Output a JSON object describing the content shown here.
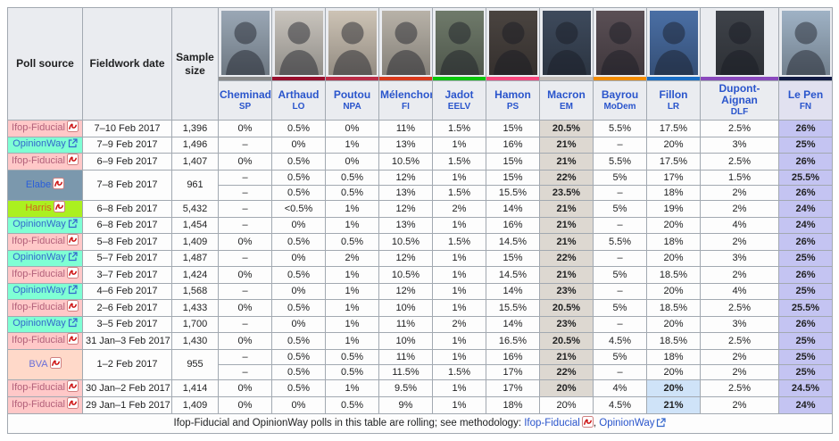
{
  "table": {
    "columns": [
      "Poll source",
      "Fieldwork date",
      "Sample size"
    ],
    "candidates": [
      {
        "name": "Cheminade",
        "party": "SP",
        "color": "#8a8a8a",
        "photo": "#9aa7b5"
      },
      {
        "name": "Arthaud",
        "party": "LO",
        "color": "#99102e",
        "photo": "#c9c4bd"
      },
      {
        "name": "Poutou",
        "party": "NPA",
        "color": "#bb2e48",
        "photo": "#cdc3b5"
      },
      {
        "name": "Mélenchon",
        "party": "FI",
        "color": "#d93a1d",
        "photo": "#b8b2a8"
      },
      {
        "name": "Jadot",
        "party": "EELV",
        "color": "#0cc60c",
        "photo": "#6f7a6a"
      },
      {
        "name": "Hamon",
        "party": "PS",
        "color": "#f8487e",
        "photo": "#4a4440"
      },
      {
        "name": "Macron",
        "party": "EM",
        "color": "#c3bdb8",
        "photo": "#3e4a5c"
      },
      {
        "name": "Bayrou",
        "party": "MoDem",
        "color": "#f28c00",
        "photo": "#5a4f55"
      },
      {
        "name": "Fillon",
        "party": "LR",
        "color": "#1b6fc6",
        "photo": "#4a6fa5"
      },
      {
        "name": "Dupont-Aignan",
        "party": "DLF",
        "color": "#8a49bd",
        "photo": "#3f434a"
      },
      {
        "name": "Le Pen",
        "party": "FN",
        "color": "#131c45",
        "photo": "#9fb2c5"
      }
    ],
    "rows": [
      {
        "source": {
          "label": "Ifop-Fiducial",
          "type": "ifop",
          "icon": "pdf"
        },
        "date": "7–10 Feb 2017",
        "sample": "1,396",
        "cells": [
          "0%",
          "0.5%",
          "0%",
          "11%",
          "1.5%",
          "15%",
          "20.5%",
          "5.5%",
          "17.5%",
          "2.5%",
          "26%"
        ],
        "highlights": {
          "6": "m",
          "10": "l"
        }
      },
      {
        "source": {
          "label": "OpinionWay",
          "type": "opinionway",
          "icon": "ext"
        },
        "date": "7–9 Feb 2017",
        "sample": "1,496",
        "cells": [
          "–",
          "0%",
          "1%",
          "13%",
          "1%",
          "16%",
          "21%",
          "–",
          "20%",
          "3%",
          "25%"
        ],
        "highlights": {
          "6": "m",
          "10": "l"
        }
      },
      {
        "source": {
          "label": "Ifop-Fiducial",
          "type": "ifop",
          "icon": "pdf"
        },
        "date": "6–9 Feb 2017",
        "sample": "1,407",
        "cells": [
          "0%",
          "0.5%",
          "0%",
          "10.5%",
          "1.5%",
          "15%",
          "21%",
          "5.5%",
          "17.5%",
          "2.5%",
          "26%"
        ],
        "highlights": {
          "6": "m",
          "10": "l"
        }
      },
      {
        "source": {
          "label": "Elabe",
          "type": "elabe",
          "icon": "pdf"
        },
        "date": "7–8 Feb 2017",
        "sample": "961",
        "span": 2,
        "cells": [
          "–",
          "0.5%",
          "0.5%",
          "12%",
          "1%",
          "15%",
          "22%",
          "5%",
          "17%",
          "1.5%",
          "25.5%"
        ],
        "highlights": {
          "6": "m",
          "10": "l"
        }
      },
      {
        "continuation": true,
        "cells": [
          "–",
          "0.5%",
          "0.5%",
          "13%",
          "1.5%",
          "15.5%",
          "23.5%",
          "–",
          "18%",
          "2%",
          "26%"
        ],
        "highlights": {
          "6": "m",
          "10": "l"
        }
      },
      {
        "source": {
          "label": "Harris",
          "type": "harris",
          "icon": "pdf"
        },
        "date": "6–8 Feb 2017",
        "sample": "5,432",
        "cells": [
          "–",
          "<0.5%",
          "1%",
          "12%",
          "2%",
          "14%",
          "21%",
          "5%",
          "19%",
          "2%",
          "24%"
        ],
        "highlights": {
          "6": "m",
          "10": "l"
        }
      },
      {
        "source": {
          "label": "OpinionWay",
          "type": "opinionway",
          "icon": "ext"
        },
        "date": "6–8 Feb 2017",
        "sample": "1,454",
        "cells": [
          "–",
          "0%",
          "1%",
          "13%",
          "1%",
          "16%",
          "21%",
          "–",
          "20%",
          "4%",
          "24%"
        ],
        "highlights": {
          "6": "m",
          "10": "l"
        }
      },
      {
        "source": {
          "label": "Ifop-Fiducial",
          "type": "ifop",
          "icon": "pdf"
        },
        "date": "5–8 Feb 2017",
        "sample": "1,409",
        "cells": [
          "0%",
          "0.5%",
          "0.5%",
          "10.5%",
          "1.5%",
          "14.5%",
          "21%",
          "5.5%",
          "18%",
          "2%",
          "26%"
        ],
        "highlights": {
          "6": "m",
          "10": "l"
        }
      },
      {
        "source": {
          "label": "OpinionWay",
          "type": "opinionway",
          "icon": "ext"
        },
        "date": "5–7 Feb 2017",
        "sample": "1,487",
        "cells": [
          "–",
          "0%",
          "2%",
          "12%",
          "1%",
          "15%",
          "22%",
          "–",
          "20%",
          "3%",
          "25%"
        ],
        "highlights": {
          "6": "m",
          "10": "l"
        }
      },
      {
        "source": {
          "label": "Ifop-Fiducial",
          "type": "ifop",
          "icon": "pdf"
        },
        "date": "3–7 Feb 2017",
        "sample": "1,424",
        "cells": [
          "0%",
          "0.5%",
          "1%",
          "10.5%",
          "1%",
          "14.5%",
          "21%",
          "5%",
          "18.5%",
          "2%",
          "26%"
        ],
        "highlights": {
          "6": "m",
          "10": "l"
        }
      },
      {
        "source": {
          "label": "OpinionWay",
          "type": "opinionway",
          "icon": "ext"
        },
        "date": "4–6 Feb 2017",
        "sample": "1,568",
        "cells": [
          "–",
          "0%",
          "1%",
          "12%",
          "1%",
          "14%",
          "23%",
          "–",
          "20%",
          "4%",
          "25%"
        ],
        "highlights": {
          "6": "m",
          "10": "l"
        }
      },
      {
        "source": {
          "label": "Ifop-Fiducial",
          "type": "ifop",
          "icon": "pdf"
        },
        "date": "2–6 Feb 2017",
        "sample": "1,433",
        "cells": [
          "0%",
          "0.5%",
          "1%",
          "10%",
          "1%",
          "15.5%",
          "20.5%",
          "5%",
          "18.5%",
          "2.5%",
          "25.5%"
        ],
        "highlights": {
          "6": "m",
          "10": "l"
        }
      },
      {
        "source": {
          "label": "OpinionWay",
          "type": "opinionway",
          "icon": "ext"
        },
        "date": "3–5 Feb 2017",
        "sample": "1,700",
        "cells": [
          "–",
          "0%",
          "1%",
          "11%",
          "2%",
          "14%",
          "23%",
          "–",
          "20%",
          "3%",
          "26%"
        ],
        "highlights": {
          "6": "m",
          "10": "l"
        }
      },
      {
        "source": {
          "label": "Ifop-Fiducial",
          "type": "ifop",
          "icon": "pdf"
        },
        "date": "31 Jan–3 Feb 2017",
        "sample": "1,430",
        "cells": [
          "0%",
          "0.5%",
          "1%",
          "10%",
          "1%",
          "16.5%",
          "20.5%",
          "4.5%",
          "18.5%",
          "2.5%",
          "25%"
        ],
        "highlights": {
          "6": "m",
          "10": "l"
        }
      },
      {
        "source": {
          "label": "BVA",
          "type": "bva",
          "icon": "pdf"
        },
        "date": "1–2 Feb 2017",
        "sample": "955",
        "span": 2,
        "cells": [
          "–",
          "0.5%",
          "0.5%",
          "11%",
          "1%",
          "16%",
          "21%",
          "5%",
          "18%",
          "2%",
          "25%"
        ],
        "highlights": {
          "6": "m",
          "10": "l"
        }
      },
      {
        "continuation": true,
        "cells": [
          "–",
          "0.5%",
          "0.5%",
          "11.5%",
          "1.5%",
          "17%",
          "22%",
          "–",
          "20%",
          "2%",
          "25%"
        ],
        "highlights": {
          "6": "m",
          "10": "l"
        }
      },
      {
        "source": {
          "label": "Ifop-Fiducial",
          "type": "ifop",
          "icon": "pdf"
        },
        "date": "30 Jan–2 Feb 2017",
        "sample": "1,414",
        "cells": [
          "0%",
          "0.5%",
          "1%",
          "9.5%",
          "1%",
          "17%",
          "20%",
          "4%",
          "20%",
          "2.5%",
          "24.5%"
        ],
        "highlights": {
          "6": "m",
          "8": "f",
          "10": "l"
        }
      },
      {
        "source": {
          "label": "Ifop-Fiducial",
          "type": "ifop",
          "icon": "pdf"
        },
        "date": "29 Jan–1 Feb 2017",
        "sample": "1,409",
        "cells": [
          "0%",
          "0%",
          "0.5%",
          "9%",
          "1%",
          "18%",
          "20%",
          "4.5%",
          "21%",
          "2%",
          "24%"
        ],
        "highlights": {
          "8": "f",
          "10": "l"
        }
      }
    ],
    "footer": {
      "text": "Ifop-Fiducial and OpinionWay polls in this table are rolling; see methodology: ",
      "link1": "Ifop-Fiducial",
      "sep": ", ",
      "link2": "OpinionWay"
    }
  },
  "sources": {
    "ifop": {
      "bg": "#ffc8c8",
      "link": "#b2607a"
    },
    "opinionway": {
      "bg": "#7fffd4",
      "link": "#3366cc"
    },
    "elabe": {
      "bg": "#7b98ad",
      "link": "#2b5fd9"
    },
    "harris": {
      "bg": "#abf020",
      "link": "#d2601e"
    },
    "bva": {
      "bg": "#ffd9c9",
      "link": "#6a6fd8"
    }
  },
  "colors": {
    "header_bg": "#eaecf0",
    "border": "#a2a9b1",
    "macron_highlight": "#ddd8d1",
    "fillon_highlight": "#cfe3f8",
    "lepen_highlight": "#c4c4f2",
    "lepen_header_bg": "#e1e1f0"
  }
}
